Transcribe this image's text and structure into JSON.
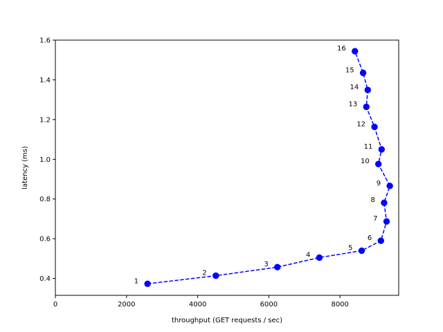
{
  "chart_data": {
    "type": "line",
    "title": "",
    "xlabel": "throughput (GET requests / sec)",
    "ylabel": "latency (ms)",
    "xlim": [
      0,
      9650
    ],
    "ylim": [
      0.315,
      1.6
    ],
    "xticks": [
      0,
      2000,
      4000,
      6000,
      8000
    ],
    "yticks": [
      0.4,
      0.6,
      0.8,
      1.0,
      1.2,
      1.4,
      1.6
    ],
    "xtick_labels": [
      "0",
      "2000",
      "4000",
      "6000",
      "8000"
    ],
    "ytick_labels": [
      "0.4",
      "0.6",
      "0.8",
      "1.0",
      "1.2",
      "1.4",
      "1.6"
    ],
    "grid": false,
    "line_style": "dashed",
    "marker": "circle",
    "color": "#0000ff",
    "series": [
      {
        "points": [
          {
            "label": "1",
            "x": 2590,
            "y": 0.373
          },
          {
            "label": "2",
            "x": 4510,
            "y": 0.414
          },
          {
            "label": "3",
            "x": 6240,
            "y": 0.457
          },
          {
            "label": "4",
            "x": 7420,
            "y": 0.505
          },
          {
            "label": "5",
            "x": 8610,
            "y": 0.54
          },
          {
            "label": "6",
            "x": 9150,
            "y": 0.59
          },
          {
            "label": "7",
            "x": 9310,
            "y": 0.687
          },
          {
            "label": "8",
            "x": 9240,
            "y": 0.781
          },
          {
            "label": "9",
            "x": 9400,
            "y": 0.866
          },
          {
            "label": "10",
            "x": 9080,
            "y": 0.976
          },
          {
            "label": "11",
            "x": 9170,
            "y": 1.05
          },
          {
            "label": "12",
            "x": 8970,
            "y": 1.163
          },
          {
            "label": "13",
            "x": 8740,
            "y": 1.264
          },
          {
            "label": "14",
            "x": 8780,
            "y": 1.349
          },
          {
            "label": "15",
            "x": 8650,
            "y": 1.435
          },
          {
            "label": "16",
            "x": 8420,
            "y": 1.544
          }
        ]
      }
    ]
  }
}
